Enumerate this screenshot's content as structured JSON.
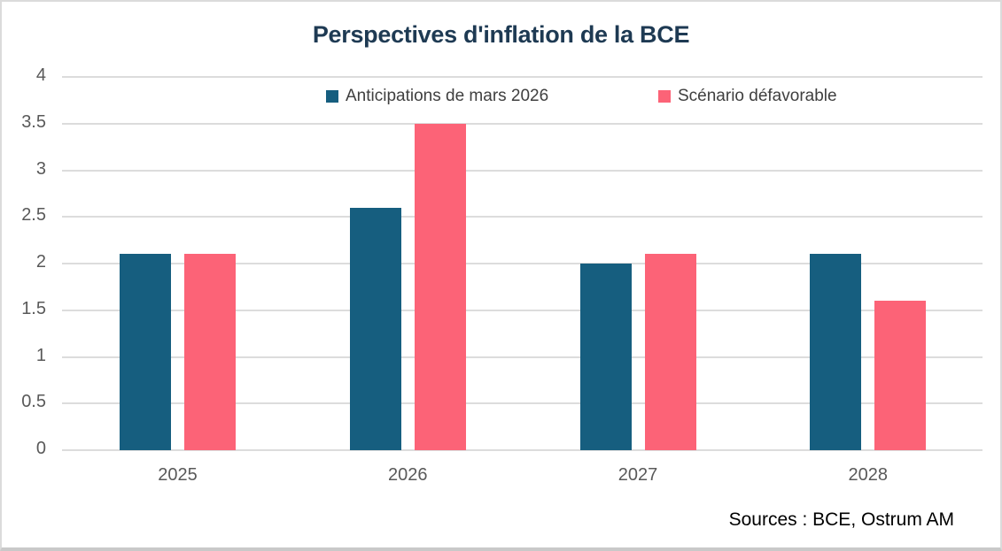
{
  "chart_data": {
    "type": "bar",
    "title": "Perspectives d'inflation de la BCE",
    "title_color": "#1E3A53",
    "categories": [
      "2025",
      "2026",
      "2027",
      "2028"
    ],
    "series": [
      {
        "name": "Anticipations de mars 2026",
        "color": "#165E7F",
        "values": [
          2.1,
          2.6,
          2.0,
          2.1
        ]
      },
      {
        "name": "Scénario défavorable",
        "color": "#FC6377",
        "values": [
          2.1,
          3.5,
          2.1,
          1.6
        ]
      }
    ],
    "ylim": [
      0,
      4
    ],
    "yticks": [
      0,
      0.5,
      1,
      1.5,
      2,
      2.5,
      3,
      3.5,
      4
    ],
    "ytick_labels": [
      "0",
      "0.5",
      "1",
      "1.5",
      "2",
      "2.5",
      "3",
      "3.5",
      "4"
    ],
    "xlabel": "",
    "ylabel": "",
    "grid": true,
    "legend_position": "top-inside",
    "source_note": "Sources : BCE, Ostrum AM"
  }
}
